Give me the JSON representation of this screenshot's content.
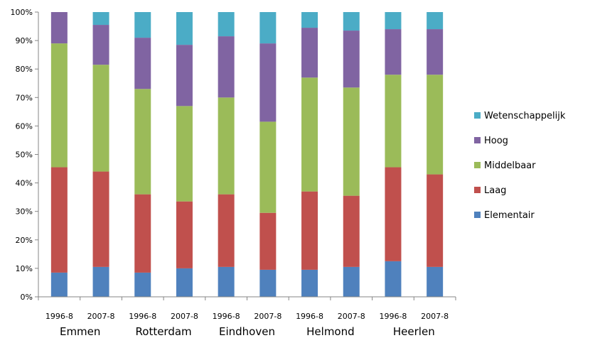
{
  "chart_data": {
    "type": "bar",
    "stacked": true,
    "percent": true,
    "categories": [
      "1996-8",
      "2007-8",
      "1996-8",
      "2007-8",
      "1996-8",
      "2007-8",
      "1996-8",
      "2007-8",
      "1996-8",
      "2007-8"
    ],
    "groups": [
      {
        "label": "Emmen",
        "category_indices": [
          0,
          1
        ]
      },
      {
        "label": "Rotterdam",
        "category_indices": [
          2,
          3
        ]
      },
      {
        "label": "Eindhoven",
        "category_indices": [
          4,
          5
        ]
      },
      {
        "label": "Helmond",
        "category_indices": [
          6,
          7
        ]
      },
      {
        "label": "Heerlen",
        "category_indices": [
          8,
          9
        ]
      }
    ],
    "series": [
      {
        "name": "Elementair",
        "color": "#4f81bd",
        "values": [
          8.5,
          10.5,
          8.5,
          10,
          10.5,
          9.5,
          9.5,
          10.5,
          12.5,
          10.5
        ]
      },
      {
        "name": "Laag",
        "color": "#c0504d",
        "values": [
          37,
          33.5,
          27.5,
          23.5,
          25.5,
          20,
          27.5,
          25,
          33,
          32.5
        ]
      },
      {
        "name": "Middelbaar",
        "color": "#9bbb59",
        "values": [
          43.5,
          37.5,
          37,
          33.5,
          34,
          32,
          40,
          38,
          32.5,
          35
        ]
      },
      {
        "name": "Hoog",
        "color": "#8064a2",
        "values": [
          11,
          14,
          18,
          21.5,
          21.5,
          27.5,
          17.5,
          20,
          16,
          16
        ]
      },
      {
        "name": "Wetenschappelijk",
        "color": "#4bacc6",
        "values": [
          0,
          4.5,
          9,
          11.5,
          8.5,
          11,
          5.5,
          6.5,
          6,
          6
        ]
      }
    ],
    "ylim": [
      0,
      100
    ],
    "yticks": [
      0,
      10,
      20,
      30,
      40,
      50,
      60,
      70,
      80,
      90,
      100
    ],
    "ytick_suffix": "%",
    "legend_order": [
      "Wetenschappelijk",
      "Hoog",
      "Middelbaar",
      "Laag",
      "Elementair"
    ],
    "legend_position": "right",
    "grid": false,
    "title": "",
    "xlabel": "",
    "ylabel": ""
  }
}
